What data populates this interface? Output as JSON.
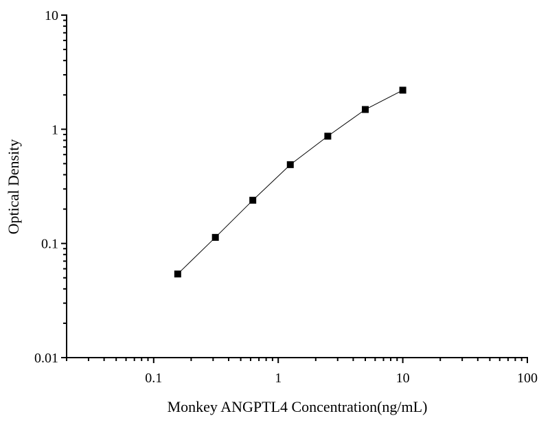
{
  "chart_data": {
    "type": "line",
    "title": "",
    "xlabel": "Monkey ANGPTL4 Concentration(ng/mL)",
    "ylabel": "Optical Density",
    "xscale": "log",
    "yscale": "log",
    "xlim": [
      0.02,
      100
    ],
    "ylim": [
      0.01,
      10
    ],
    "x_ticks": [
      0.1,
      1,
      10,
      100
    ],
    "x_tick_labels": [
      "0.1",
      "1",
      "10",
      "100"
    ],
    "y_ticks": [
      0.01,
      0.1,
      1,
      10
    ],
    "y_tick_labels": [
      "0.01",
      "0.1",
      "1",
      "10"
    ],
    "grid": false,
    "marker": "square",
    "series": [
      {
        "x": [
          0.156,
          0.313,
          0.625,
          1.25,
          2.5,
          5,
          10
        ],
        "y": [
          0.054,
          0.113,
          0.239,
          0.49,
          0.87,
          1.49,
          2.2
        ]
      }
    ],
    "colors": {
      "line": "#000000",
      "marker": "#000000",
      "axis": "#000000"
    }
  }
}
